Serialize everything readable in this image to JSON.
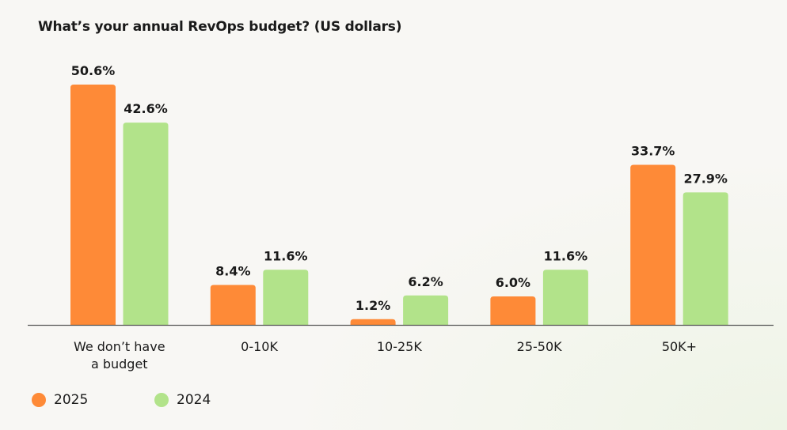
{
  "chart_data": {
    "type": "bar",
    "title": "What’s your annual RevOps budget? (US dollars)",
    "categories": [
      "We don’t have a budget",
      "0-10K",
      "10-25K",
      "25-50K",
      "50K+"
    ],
    "category_lines": [
      [
        "We don’t have",
        "a budget"
      ],
      [
        "0-10K"
      ],
      [
        "10-25K"
      ],
      [
        "25-50K"
      ],
      [
        "50K+"
      ]
    ],
    "series": [
      {
        "name": "2025",
        "color": "#fe8a37",
        "values": [
          50.6,
          8.4,
          1.2,
          6.0,
          33.7
        ],
        "labels": [
          "50.6%",
          "8.4%",
          "1.2%",
          "6.0%",
          "33.7%"
        ]
      },
      {
        "name": "2024",
        "color": "#b2e38a",
        "values": [
          42.6,
          11.6,
          6.2,
          11.6,
          27.9
        ],
        "labels": [
          "42.6%",
          "11.6%",
          "6.2%",
          "11.6%",
          "27.9%"
        ]
      }
    ],
    "ylim": [
      0,
      50.6
    ],
    "grid": false,
    "legend": "bottom-left",
    "xlabel": "",
    "ylabel": ""
  }
}
